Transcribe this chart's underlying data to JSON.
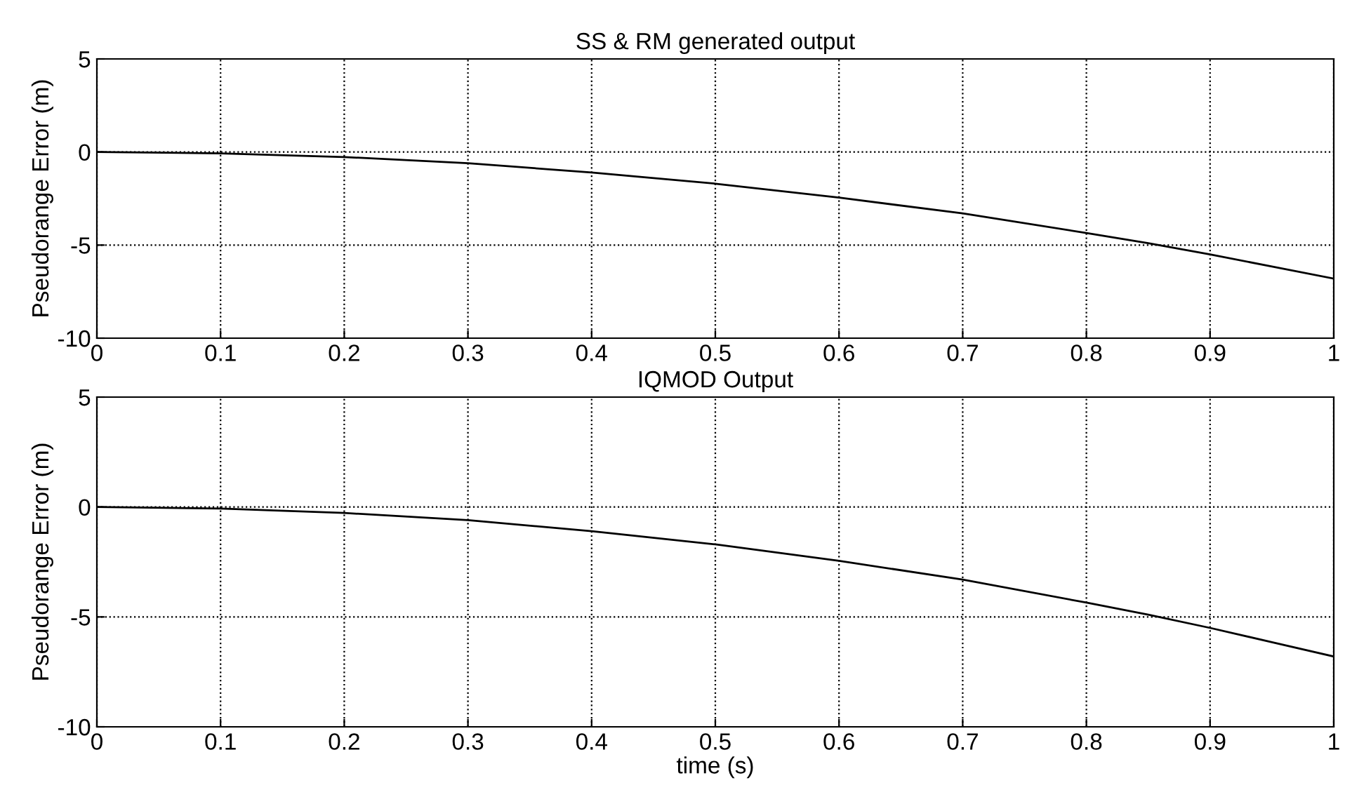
{
  "chart_data": [
    {
      "type": "line",
      "title": "SS & RM generated output",
      "ylabel": "Pseudorange Error (m)",
      "x": [
        0,
        0.1,
        0.2,
        0.3,
        0.4,
        0.5,
        0.6,
        0.7,
        0.8,
        0.85,
        0.9,
        0.95,
        1
      ],
      "series": [
        {
          "color": "#000000",
          "values": [
            0,
            -0.07,
            -0.27,
            -0.6,
            -1.1,
            -1.7,
            -2.45,
            -3.3,
            -4.35,
            -4.9,
            -5.5,
            -6.15,
            -6.8
          ]
        }
      ],
      "xlim": [
        0,
        1
      ],
      "xticks": [
        0,
        0.1,
        0.2,
        0.3,
        0.4,
        0.5,
        0.6,
        0.7,
        0.8,
        0.9,
        1
      ],
      "ylim": [
        -10,
        5
      ],
      "yticks": [
        -10,
        -5,
        0,
        5
      ],
      "grid": true
    },
    {
      "type": "line",
      "title": "IQMOD Output",
      "xlabel": "time (s)",
      "ylabel": "Pseudorange Error (m)",
      "x": [
        0,
        0.1,
        0.2,
        0.3,
        0.4,
        0.5,
        0.6,
        0.7,
        0.8,
        0.85,
        0.9,
        0.95,
        1
      ],
      "series": [
        {
          "color": "#000000",
          "values": [
            0,
            -0.07,
            -0.27,
            -0.6,
            -1.1,
            -1.7,
            -2.45,
            -3.3,
            -4.35,
            -4.9,
            -5.5,
            -6.15,
            -6.8
          ]
        }
      ],
      "xlim": [
        0,
        1
      ],
      "xticks": [
        0,
        0.1,
        0.2,
        0.3,
        0.4,
        0.5,
        0.6,
        0.7,
        0.8,
        0.9,
        1
      ],
      "ylim": [
        -10,
        5
      ],
      "yticks": [
        -10,
        -5,
        0,
        5
      ],
      "grid": true
    }
  ]
}
